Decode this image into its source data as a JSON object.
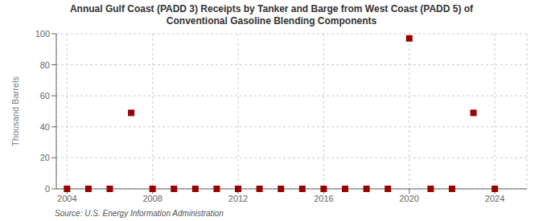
{
  "chart_data": {
    "type": "scatter",
    "title": "Annual Gulf Coast (PADD 3) Receipts by Tanker and Barge from West Coast (PADD 5) of\nConventional Gasoline Blending Components",
    "ylabel": "Thousand Barrels",
    "annotation": "Source: U.S. Energy Information Administration",
    "x": [
      2004,
      2005,
      2006,
      2007,
      2008,
      2009,
      2010,
      2011,
      2012,
      2013,
      2014,
      2015,
      2016,
      2017,
      2018,
      2019,
      2020,
      2021,
      2022,
      2023,
      2024
    ],
    "values": [
      0,
      0,
      0,
      49,
      0,
      0,
      0,
      0,
      0,
      0,
      0,
      0,
      0,
      0,
      0,
      0,
      97,
      0,
      0,
      49,
      0
    ],
    "color": "#990000",
    "marker": "square",
    "xlim": [
      2003.5,
      2025.5
    ],
    "xticks": [
      2004,
      2008,
      2012,
      2016,
      2020,
      2024
    ],
    "ylim": [
      0,
      100
    ],
    "yticks": [
      0,
      20,
      40,
      60,
      80,
      100
    ],
    "grid": true
  }
}
